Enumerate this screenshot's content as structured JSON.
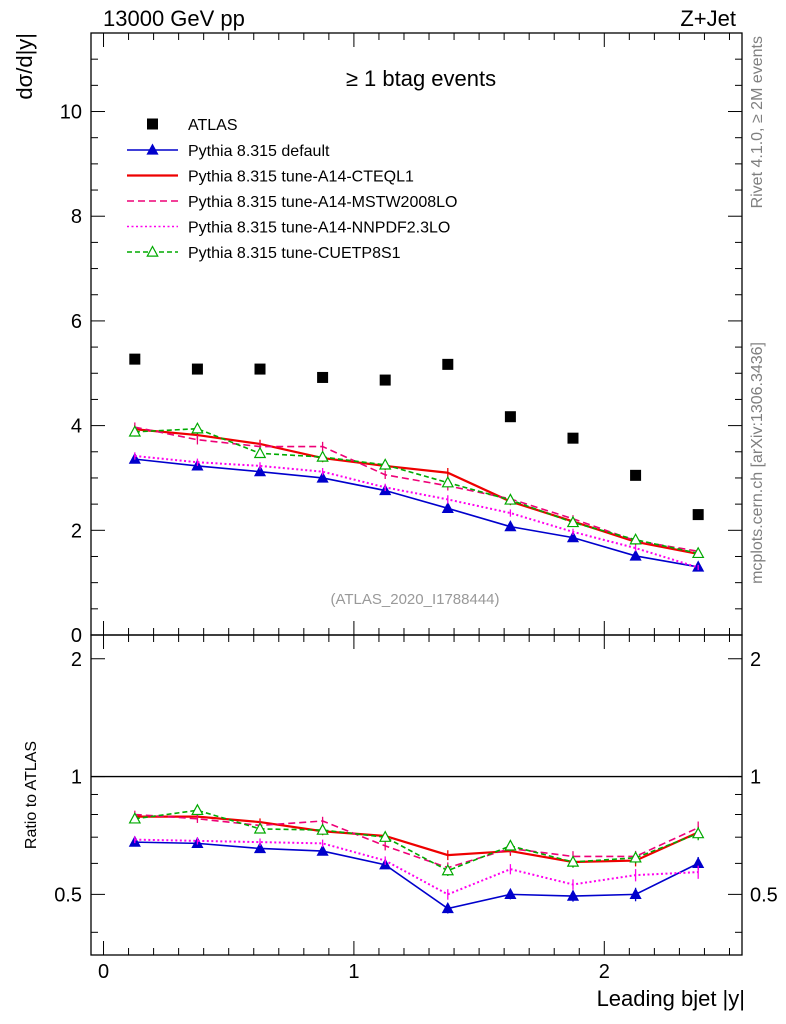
{
  "chart_data": {
    "type": "line",
    "header": {
      "left": "13000 GeV pp",
      "right": "Z+Jet"
    },
    "title": "≥ 1 btag events",
    "xlabel": "Leading bjet |y|",
    "ylabel": "dσ/d|y|",
    "ratio_ylabel": "Ratio to ATLAS",
    "watermark": "(ATLAS_2020_I1788444)",
    "side_text_top": "Rivet 4.1.0, ≥ 2M events",
    "side_text_bottom": "mcplots.cern.ch [arXiv:1306.3436]",
    "xlim": [
      -0.05,
      2.55
    ],
    "ylim": [
      0,
      11.5
    ],
    "ratio_ylim": [
      0.35,
      2.3
    ],
    "x_ticks": [
      0,
      1,
      2
    ],
    "y_ticks": [
      0,
      2,
      4,
      6,
      8,
      10
    ],
    "ratio_ticks": [
      0.5,
      1,
      2
    ],
    "x_tick_labels": [
      "0",
      "1",
      "2"
    ],
    "y_tick_labels": [
      "0",
      "2",
      "4",
      "6",
      "8",
      "10"
    ],
    "ratio_tick_labels": [
      "0.5",
      "1",
      "2"
    ],
    "x": [
      0.125,
      0.375,
      0.625,
      0.875,
      1.125,
      1.375,
      1.625,
      1.875,
      2.125,
      2.375
    ],
    "data": {
      "name": "ATLAS",
      "values": [
        5.27,
        5.08,
        5.08,
        4.92,
        4.87,
        5.17,
        4.17,
        3.76,
        3.05,
        2.3
      ],
      "color": "#000000"
    },
    "series": [
      {
        "name": "Pythia 8.315 default",
        "values": [
          3.36,
          3.23,
          3.12,
          3.0,
          2.76,
          2.42,
          2.07,
          1.86,
          1.51,
          1.3
        ],
        "errors": [
          0.06,
          0.06,
          0.06,
          0.06,
          0.06,
          0.07,
          0.06,
          0.06,
          0.06,
          0.05
        ],
        "ratio": [
          0.68,
          0.675,
          0.655,
          0.645,
          0.595,
          0.46,
          0.5,
          0.495,
          0.5,
          0.6
        ],
        "color": "#0000cc",
        "style": "solid",
        "marker": "triangle-filled"
      },
      {
        "name": "Pythia 8.315 tune-A14-CTEQL1",
        "values": [
          3.93,
          3.82,
          3.65,
          3.38,
          3.23,
          3.1,
          2.55,
          2.17,
          1.78,
          1.55
        ],
        "errors": [
          0.08,
          0.08,
          0.08,
          0.08,
          0.08,
          0.09,
          0.07,
          0.07,
          0.06,
          0.06
        ],
        "ratio": [
          0.79,
          0.79,
          0.765,
          0.725,
          0.705,
          0.63,
          0.645,
          0.605,
          0.61,
          0.72
        ],
        "color": "#ee0000",
        "style": "solid",
        "marker": "none"
      },
      {
        "name": "Pythia 8.315 tune-A14-MSTW2008LO",
        "values": [
          3.97,
          3.73,
          3.6,
          3.6,
          3.06,
          2.85,
          2.6,
          2.22,
          1.8,
          1.6
        ],
        "errors": [
          0.09,
          0.09,
          0.09,
          0.09,
          0.08,
          0.09,
          0.08,
          0.07,
          0.06,
          0.06
        ],
        "ratio": [
          0.8,
          0.78,
          0.75,
          0.77,
          0.665,
          0.585,
          0.655,
          0.625,
          0.625,
          0.74
        ],
        "color": "#ee0077",
        "style": "dashed",
        "marker": "none"
      },
      {
        "name": "Pythia 8.315 tune-A14-NNPDF2.3LO",
        "values": [
          3.42,
          3.3,
          3.23,
          3.12,
          2.82,
          2.59,
          2.33,
          1.97,
          1.66,
          1.29
        ],
        "errors": [
          0.07,
          0.07,
          0.07,
          0.07,
          0.07,
          0.08,
          0.07,
          0.06,
          0.06,
          0.05
        ],
        "ratio": [
          0.69,
          0.685,
          0.68,
          0.675,
          0.61,
          0.5,
          0.58,
          0.53,
          0.56,
          0.57
        ],
        "color": "#ff00ee",
        "style": "dotted",
        "marker": "none"
      },
      {
        "name": "Pythia 8.315 tune-CUETP8S1",
        "values": [
          3.88,
          3.94,
          3.47,
          3.4,
          3.25,
          2.91,
          2.58,
          2.15,
          1.82,
          1.56
        ],
        "errors": [
          0.09,
          0.1,
          0.09,
          0.09,
          0.08,
          0.09,
          0.08,
          0.07,
          0.06,
          0.06
        ],
        "ratio": [
          0.78,
          0.82,
          0.735,
          0.73,
          0.7,
          0.575,
          0.665,
          0.605,
          0.62,
          0.715
        ],
        "color": "#00aa00",
        "style": "dashed-fine",
        "marker": "triangle-open"
      }
    ]
  }
}
